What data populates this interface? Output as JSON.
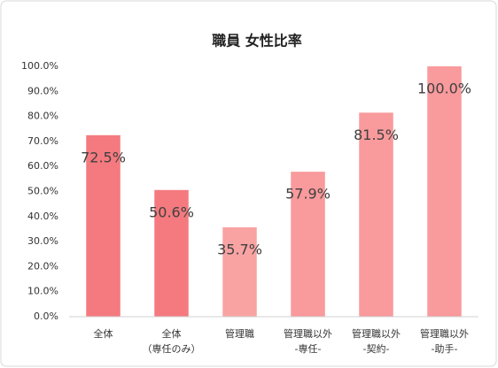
{
  "chart_data": {
    "type": "bar",
    "title": "職員 女性比率",
    "categories": [
      [
        "全体"
      ],
      [
        "全体",
        "（専任のみ）"
      ],
      [
        "管理職"
      ],
      [
        "管理職以外",
        "-専任-"
      ],
      [
        "管理職以外",
        "-契約-"
      ],
      [
        "管理職以外",
        "-助手-"
      ]
    ],
    "values": [
      72.5,
      50.6,
      35.7,
      57.9,
      81.5,
      100.0
    ],
    "value_labels": [
      "72.5%",
      "50.6%",
      "35.7%",
      "57.9%",
      "81.5%",
      "100.0%"
    ],
    "colors": [
      "#f47a7f",
      "#f47a7f",
      "#f9a3a3",
      "#f99a9c",
      "#f99a9c",
      "#f99a9c"
    ],
    "ylim": [
      0,
      100
    ],
    "yticks": [
      {
        "value": 0,
        "label": "0.0%"
      },
      {
        "value": 10,
        "label": "10.0%"
      },
      {
        "value": 20,
        "label": "20.0%"
      },
      {
        "value": 30,
        "label": "30.0%"
      },
      {
        "value": 40,
        "label": "40.0%"
      },
      {
        "value": 50,
        "label": "50.0%"
      },
      {
        "value": 60,
        "label": "60.0%"
      },
      {
        "value": 70,
        "label": "70.0%"
      },
      {
        "value": 80,
        "label": "80.0%"
      },
      {
        "value": 90,
        "label": "90.0%"
      },
      {
        "value": 100,
        "label": "100.0%"
      }
    ],
    "grid": false
  }
}
